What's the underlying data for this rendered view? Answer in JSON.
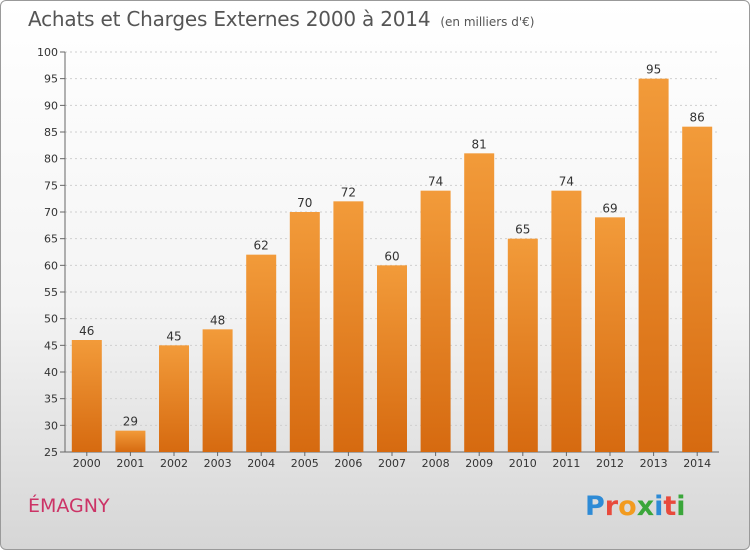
{
  "header": {
    "title": "Achats et Charges Externes 2000 à 2014",
    "unit": "(en milliers d'€)"
  },
  "footer": {
    "place": "ÉMAGNY",
    "logo_letters": [
      "P",
      "r",
      "o",
      "x",
      "i",
      "t",
      "i"
    ],
    "logo_colors": [
      "#2e8bd6",
      "#e84a3c",
      "#f29b1f",
      "#3aa63a",
      "#2e8bd6",
      "#e84a3c",
      "#3aa63a"
    ]
  },
  "chart_data": {
    "type": "bar",
    "title": "Achats et Charges Externes 2000 à 2014",
    "categories": [
      "2000",
      "2001",
      "2002",
      "2003",
      "2004",
      "2005",
      "2006",
      "2007",
      "2008",
      "2009",
      "2010",
      "2011",
      "2012",
      "2013",
      "2014"
    ],
    "values": [
      46,
      29,
      45,
      48,
      62,
      70,
      72,
      60,
      74,
      81,
      65,
      74,
      69,
      95,
      86
    ],
    "ylim": [
      25,
      100
    ],
    "yticks": [
      25,
      30,
      35,
      40,
      45,
      50,
      55,
      60,
      65,
      70,
      75,
      80,
      85,
      90,
      95,
      100
    ],
    "grid": true,
    "bar_color": "#f29b3a",
    "bar_color_dark": "#d66a10",
    "label_color": "#333333"
  }
}
